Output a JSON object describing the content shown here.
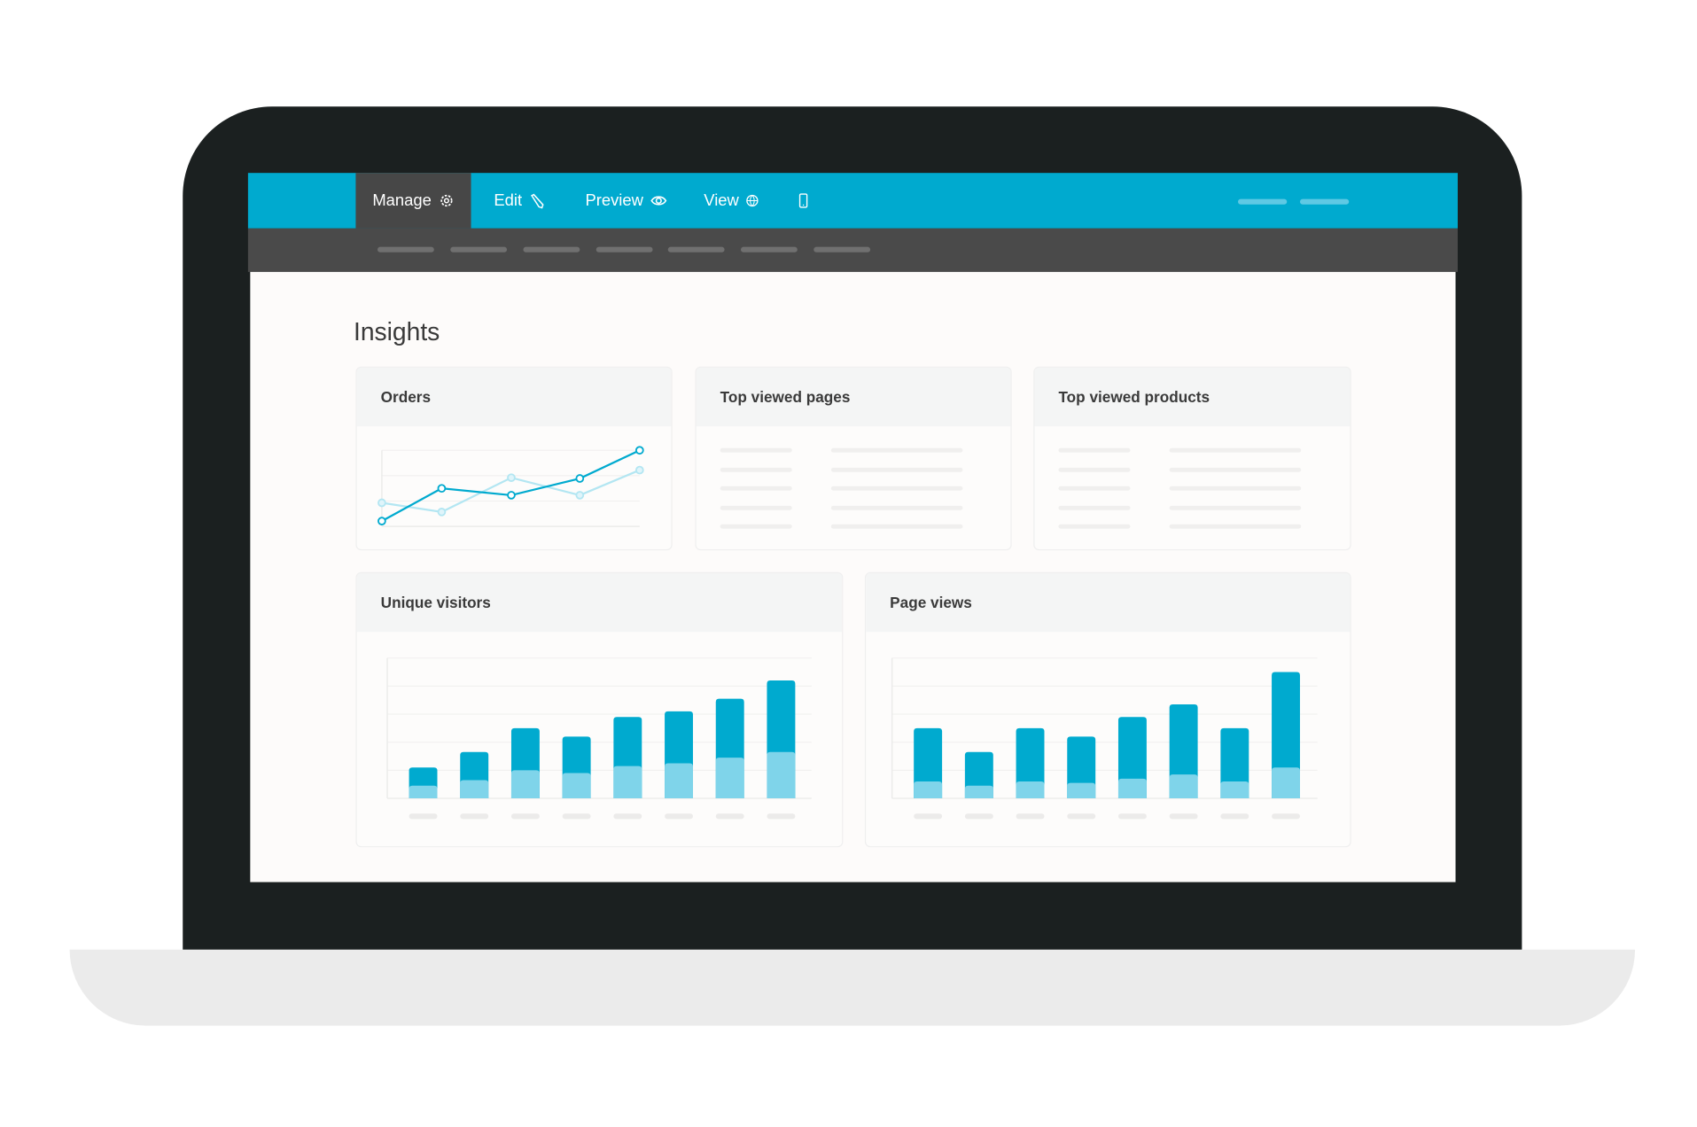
{
  "nav": {
    "tabs": [
      {
        "label": "Manage",
        "icon": "gear-icon",
        "active": true
      },
      {
        "label": "Edit",
        "icon": "pencil-icon"
      },
      {
        "label": "Preview",
        "icon": "eye-icon"
      },
      {
        "label": "View",
        "icon": "globe-icon"
      },
      {
        "label": "",
        "icon": "mobile-icon"
      }
    ]
  },
  "page": {
    "title": "Insights"
  },
  "cards": {
    "orders": {
      "title": "Orders"
    },
    "top_pages": {
      "title": "Top viewed pages"
    },
    "top_products": {
      "title": "Top viewed products"
    },
    "unique_visitors": {
      "title": "Unique visitors"
    },
    "page_views": {
      "title": "Page views"
    }
  },
  "colors": {
    "accent": "#00aacf",
    "accent_light": "#7fd4ea",
    "line_light": "#b3e6f2",
    "bezel": "#1b2020"
  },
  "chart_data": [
    {
      "type": "line",
      "title": "Orders",
      "grid": true,
      "ylim": [
        0,
        100
      ],
      "series": [
        {
          "values": [
            7,
            50,
            41,
            63,
            100
          ]
        },
        {
          "values": [
            31,
            19,
            64,
            41,
            74
          ]
        }
      ]
    },
    {
      "type": "bar",
      "title": "Unique visitors",
      "stacked": true,
      "grid": true,
      "ylim": [
        0,
        100
      ],
      "series": [
        {
          "values": [
            9,
            13,
            20,
            18,
            23,
            25,
            29,
            33
          ]
        },
        {
          "values": [
            13,
            20,
            30,
            26,
            35,
            37,
            42,
            51
          ]
        }
      ]
    },
    {
      "type": "bar",
      "title": "Page views",
      "stacked": true,
      "grid": true,
      "ylim": [
        0,
        100
      ],
      "series": [
        {
          "values": [
            12,
            9,
            12,
            11,
            14,
            17,
            12,
            22
          ]
        },
        {
          "values": [
            38,
            24,
            38,
            33,
            44,
            50,
            38,
            68
          ]
        }
      ]
    }
  ]
}
